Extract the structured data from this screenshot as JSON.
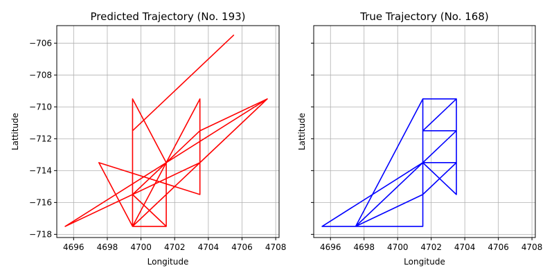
{
  "chart_data": [
    {
      "type": "line",
      "title": "Predicted Trajectory (No. 193)",
      "xlabel": "Longitude",
      "ylabel": "Lattitude",
      "xlim": [
        4695,
        4708.2
      ],
      "ylim": [
        -718.2,
        -704.9
      ],
      "xticks": [
        4696,
        4698,
        4700,
        4702,
        4704,
        4706,
        4708
      ],
      "yticks": [
        -706,
        -708,
        -710,
        -712,
        -714,
        -716,
        -718
      ],
      "xtick_labels": [
        "4696",
        "4698",
        "4700",
        "4702",
        "4704",
        "4706",
        "4708"
      ],
      "ytick_labels": [
        "−706",
        "−708",
        "−710",
        "−712",
        "−714",
        "−716",
        "−718"
      ],
      "show_ytick_labels": true,
      "grid": true,
      "color": "#ff0000",
      "x": [
        4699.5,
        4699.5,
        4705.5,
        4699.5,
        4699.5,
        4703.5,
        4703.5,
        4697.5,
        4699.5,
        4701.5,
        4701.5,
        4699.5,
        4701.5,
        4701.5,
        4699.5,
        4703.5,
        4707.5,
        4695.5,
        4703.5,
        4707.5,
        4699.5,
        4703.5,
        4703.5
      ],
      "y": [
        -709.5,
        -711.5,
        -705.5,
        -711.5,
        -717.5,
        -709.5,
        -715.5,
        -713.5,
        -717.5,
        -717.5,
        -713.5,
        -709.5,
        -713.5,
        -717.5,
        -715.5,
        -711.5,
        -709.5,
        -717.5,
        -713.5,
        -709.5,
        -717.5,
        -713.5,
        -715.5
      ]
    },
    {
      "type": "line",
      "title": "True Trajectory (No. 168)",
      "xlabel": "Longitude",
      "ylabel": "Lattitude",
      "xlim": [
        4695,
        4708.2
      ],
      "ylim": [
        -718.2,
        -704.9
      ],
      "xticks": [
        4696,
        4698,
        4700,
        4702,
        4704,
        4706,
        4708
      ],
      "yticks": [
        -706,
        -708,
        -710,
        -712,
        -714,
        -716,
        -718
      ],
      "xtick_labels": [
        "4696",
        "4698",
        "4700",
        "4702",
        "4704",
        "4706",
        "4708"
      ],
      "ytick_labels": [
        "",
        "",
        "",
        "",
        "",
        "",
        ""
      ],
      "show_ytick_labels": false,
      "grid": true,
      "color": "#0000ff",
      "x": [
        4701.5,
        4701.5,
        4703.5,
        4701.5,
        4701.5,
        4703.5,
        4703.5,
        4701.5,
        4697.5,
        4703.5,
        4703.5,
        4701.5,
        4701.5,
        4695.5,
        4701.5,
        4701.5,
        4703.5,
        4703.5,
        4701.5,
        4697.5,
        4701.5
      ],
      "y": [
        -717.5,
        -709.5,
        -709.5,
        -711.5,
        -711.5,
        -711.5,
        -709.5,
        -709.5,
        -717.5,
        -711.5,
        -713.5,
        -715.5,
        -713.5,
        -717.5,
        -717.5,
        -713.5,
        -713.5,
        -715.5,
        -713.5,
        -717.5,
        -715.5
      ]
    }
  ]
}
